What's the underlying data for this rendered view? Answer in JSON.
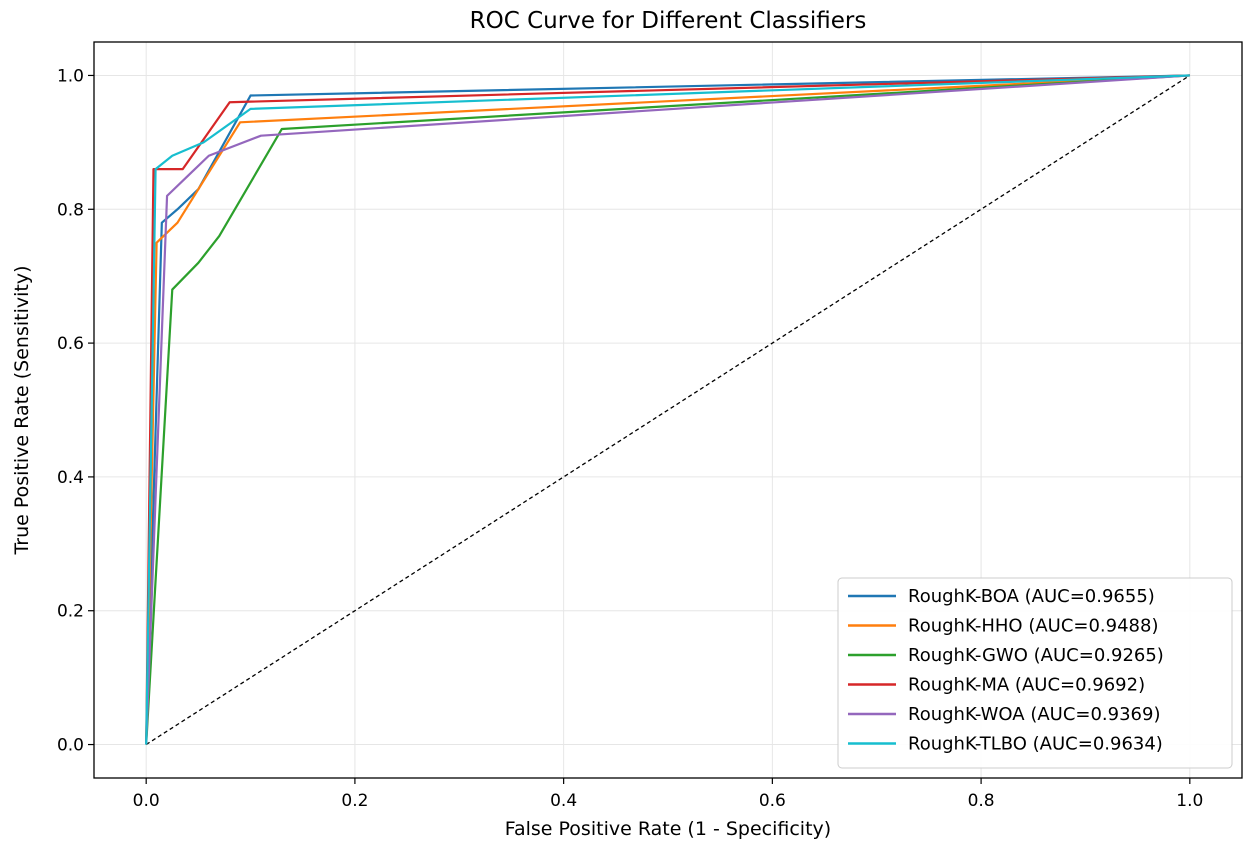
{
  "chart_data": {
    "type": "line",
    "title": "ROC Curve for Different Classifiers",
    "xlabel": "False Positive Rate (1 - Specificity)",
    "ylabel": "True Positive Rate (Sensitivity)",
    "xlim": [
      -0.05,
      1.05
    ],
    "ylim": [
      -0.05,
      1.05
    ],
    "xticks": [
      0.0,
      0.2,
      0.4,
      0.6,
      0.8,
      1.0
    ],
    "yticks": [
      0.0,
      0.2,
      0.4,
      0.6,
      0.8,
      1.0
    ],
    "xtick_labels": [
      "0.0",
      "0.2",
      "0.4",
      "0.6",
      "0.8",
      "1.0"
    ],
    "ytick_labels": [
      "0.0",
      "0.2",
      "0.4",
      "0.6",
      "0.8",
      "1.0"
    ],
    "grid": true,
    "legend_position": "lower-right",
    "series": [
      {
        "name": "RoughK-BOA",
        "label": "RoughK-BOA (AUC=0.9655)",
        "color": "#1f77b4",
        "x": [
          0.0,
          0.015,
          0.03,
          0.05,
          0.1,
          1.0
        ],
        "y": [
          0.0,
          0.78,
          0.8,
          0.83,
          0.97,
          1.0
        ]
      },
      {
        "name": "RoughK-HHO",
        "label": "RoughK-HHO (AUC=0.9488)",
        "color": "#ff7f0e",
        "x": [
          0.0,
          0.01,
          0.03,
          0.05,
          0.09,
          1.0
        ],
        "y": [
          0.0,
          0.75,
          0.78,
          0.83,
          0.93,
          1.0
        ]
      },
      {
        "name": "RoughK-GWO",
        "label": "RoughK-GWO (AUC=0.9265)",
        "color": "#2ca02c",
        "x": [
          0.0,
          0.025,
          0.05,
          0.07,
          0.13,
          1.0
        ],
        "y": [
          0.0,
          0.68,
          0.72,
          0.76,
          0.92,
          1.0
        ]
      },
      {
        "name": "RoughK-MA",
        "label": "RoughK-MA  (AUC=0.9692)",
        "color": "#d62728",
        "x": [
          0.0,
          0.007,
          0.035,
          0.08,
          1.0
        ],
        "y": [
          0.0,
          0.86,
          0.86,
          0.96,
          1.0
        ]
      },
      {
        "name": "RoughK-WOA",
        "label": "RoughK-WOA (AUC=0.9369)",
        "color": "#9467bd",
        "x": [
          0.0,
          0.02,
          0.04,
          0.06,
          0.11,
          1.0
        ],
        "y": [
          0.0,
          0.82,
          0.85,
          0.88,
          0.91,
          1.0
        ]
      },
      {
        "name": "RoughK-TLBO",
        "label": "RoughK-TLBO (AUC=0.9634)",
        "color": "#17becf",
        "x": [
          0.0,
          0.009,
          0.025,
          0.055,
          0.1,
          1.0
        ],
        "y": [
          0.0,
          0.86,
          0.88,
          0.9,
          0.95,
          1.0
        ]
      }
    ],
    "reference_line": {
      "name": "chance-diagonal",
      "color": "#000000",
      "x": [
        0.0,
        1.0
      ],
      "y": [
        0.0,
        1.0
      ]
    }
  }
}
